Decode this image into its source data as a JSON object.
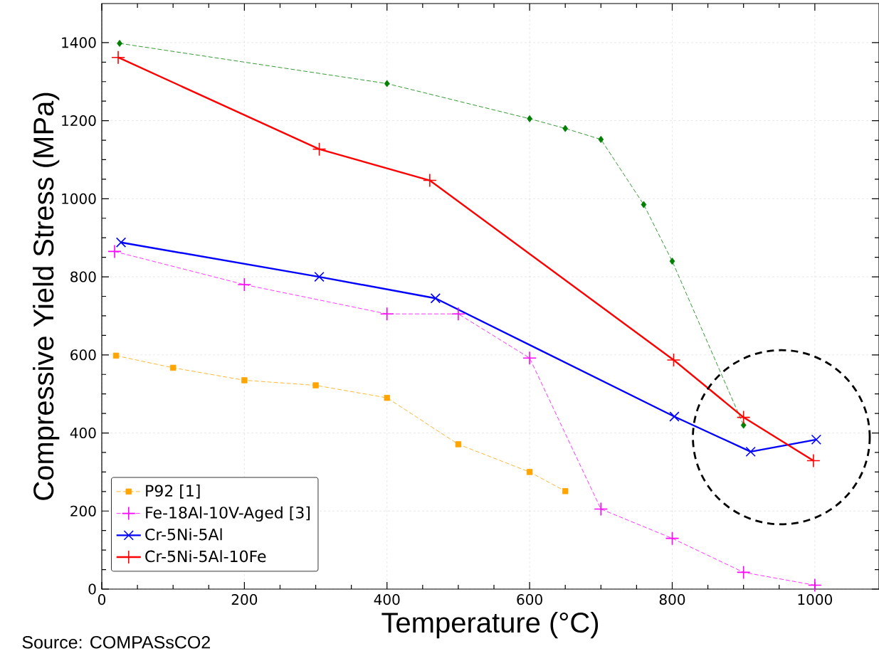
{
  "chart_data": {
    "type": "line",
    "xlabel": "Temperature (°C)",
    "ylabel": "Compressive Yield Stress (MPa)",
    "annotations": [
      "Source: COMPASsCO2"
    ],
    "xlim": [
      0,
      1090
    ],
    "ylim": [
      0,
      1500
    ],
    "xticks": [
      0,
      200,
      400,
      600,
      800,
      1000
    ],
    "yticks": [
      0,
      200,
      400,
      600,
      800,
      1000,
      1200,
      1400
    ],
    "grid": true,
    "legend": "bottom left",
    "series": [
      {
        "name": "P92 [1]",
        "color": "#ffa500",
        "marker": "square",
        "line_style": "dashed",
        "x": [
          20,
          100,
          200,
          300,
          400,
          500,
          600,
          650
        ],
        "values": [
          598,
          567,
          535,
          522,
          490,
          371,
          300,
          251
        ]
      },
      {
        "color": "#008000",
        "marker": "diamond",
        "line_style": "dashed",
        "x": [
          25,
          400,
          600,
          650,
          700,
          760,
          800,
          900
        ],
        "values": [
          1398,
          1295,
          1205,
          1180,
          1152,
          985,
          840,
          420
        ]
      },
      {
        "name": "Fe-18Al-10V-Aged [3]",
        "color": "#ff00ff",
        "marker": "plus",
        "line_style": "dashed",
        "x": [
          18,
          200,
          400,
          500,
          600,
          700,
          800,
          900,
          1000
        ],
        "values": [
          865,
          780,
          705,
          705,
          592,
          205,
          130,
          43,
          10
        ]
      },
      {
        "name": "Cr-5Ni-5Al",
        "color": "#0000ff",
        "marker": "cross",
        "line_style": "solid",
        "x": [
          27,
          305,
          468,
          803,
          910,
          1002
        ],
        "values": [
          888,
          800,
          745,
          442,
          352,
          383
        ]
      },
      {
        "name": "Cr-5Ni-5Al-10Fe",
        "color": "#ff0000",
        "marker": "plus",
        "line_style": "solid",
        "x": [
          23,
          305,
          460,
          802,
          900,
          998
        ],
        "values": [
          1362,
          1127,
          1047,
          587,
          440,
          329
        ]
      }
    ]
  }
}
